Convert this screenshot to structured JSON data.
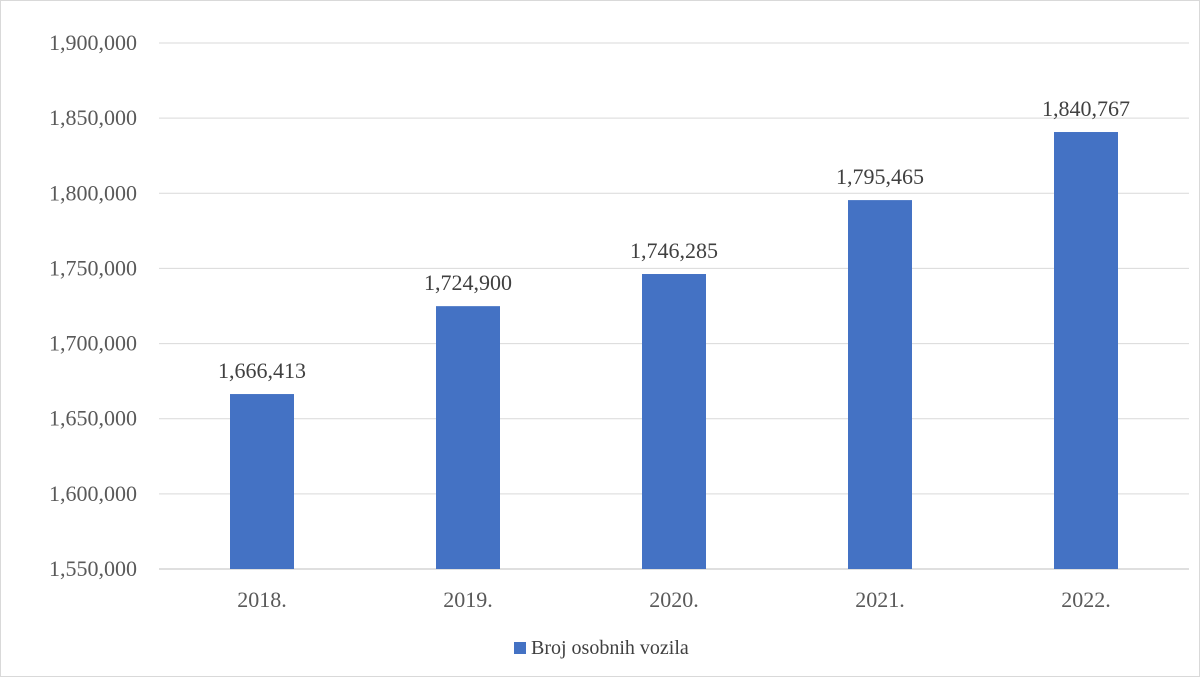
{
  "chart_data": {
    "type": "bar",
    "categories": [
      "2018.",
      "2019.",
      "2020.",
      "2021.",
      "2022."
    ],
    "series": [
      {
        "name": "Broj osobnih vozila",
        "values": [
          1666413,
          1724900,
          1746285,
          1795465,
          1840767
        ],
        "data_labels": [
          "1,666,413",
          "1,724,900",
          "1,746,285",
          "1,795,465",
          "1,840,767"
        ],
        "color": "#4472c4"
      }
    ],
    "yticks": [
      "1,550,000",
      "1,600,000",
      "1,650,000",
      "1,700,000",
      "1,750,000",
      "1,800,000",
      "1,850,000",
      "1,900,000"
    ],
    "ylim": [
      1550000,
      1900000
    ],
    "ytick_step": 50000,
    "grid": true,
    "gridline_color": "#d9d9d9",
    "legend": {
      "position": "bottom",
      "label": "Broj osobnih vozila"
    },
    "title": "",
    "xlabel": "",
    "ylabel": ""
  }
}
